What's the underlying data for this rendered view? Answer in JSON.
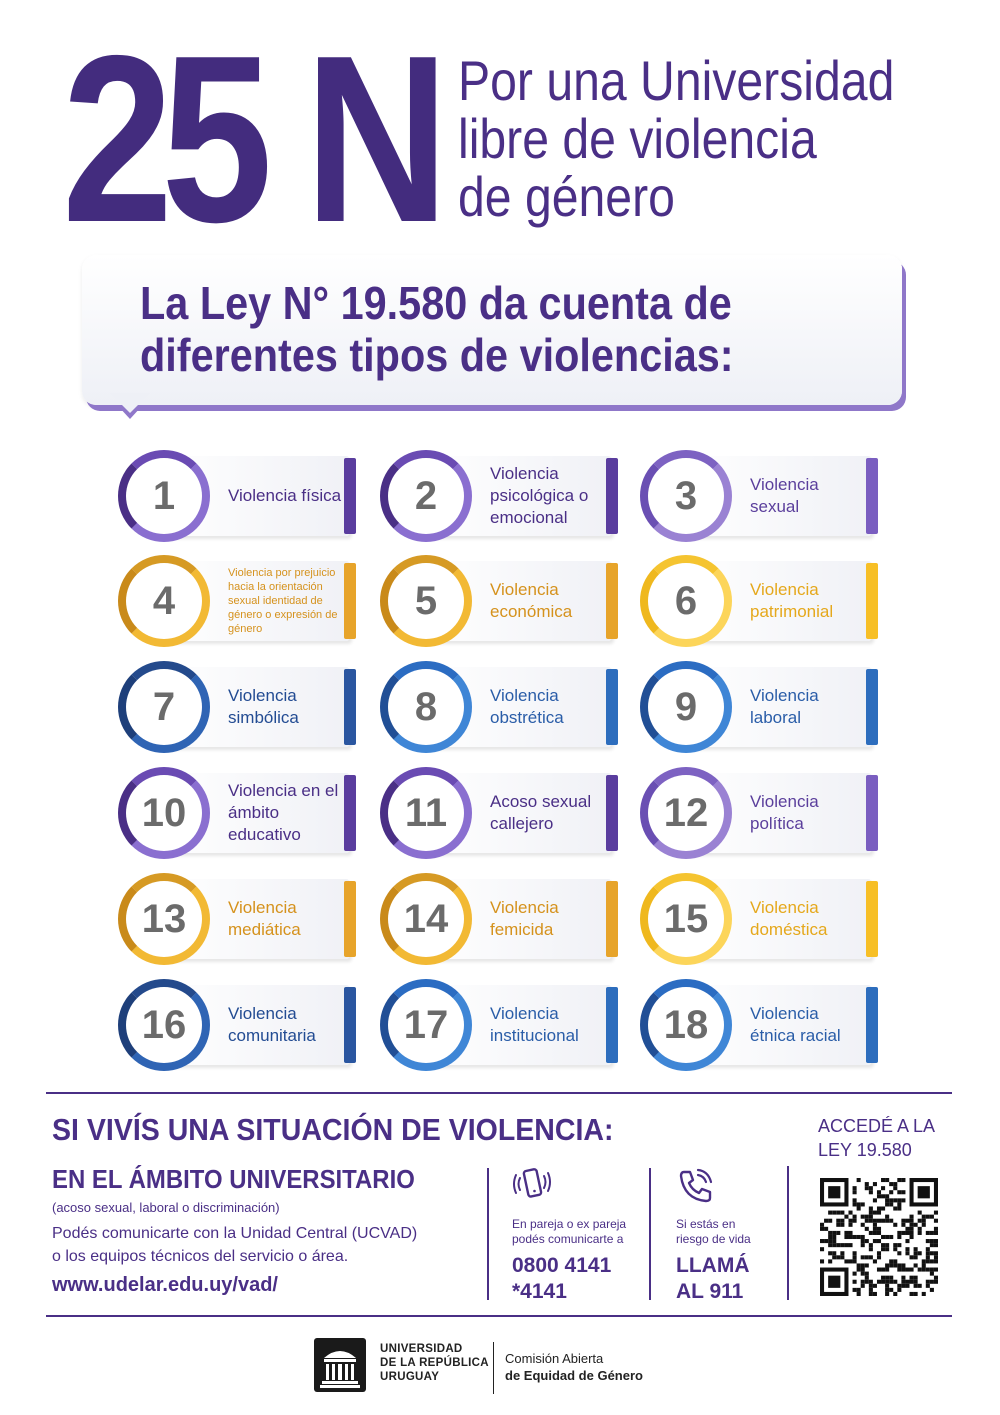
{
  "header": {
    "big_label": "25 N",
    "title_lines": [
      "Por una Universidad",
      "libre de violencia",
      "de género"
    ]
  },
  "bubble": {
    "lines": [
      "La Ley N° 19.580 da cuenta de",
      "diferentes tipos de violencias:"
    ]
  },
  "types": [
    {
      "num": "1",
      "label": "Violencia física",
      "color": "purple"
    },
    {
      "num": "2",
      "label": "Violencia psicológica o emocional",
      "color": "purple"
    },
    {
      "num": "3",
      "label": "Violencia sexual",
      "color": "violet"
    },
    {
      "num": "4",
      "label": "Violencia por prejuicio hacia la orientación sexual identidad de género o expresión de género",
      "color": "orange",
      "small": true
    },
    {
      "num": "5",
      "label": "Violencia económica",
      "color": "orange"
    },
    {
      "num": "6",
      "label": "Violencia patrimonial",
      "color": "yellow"
    },
    {
      "num": "7",
      "label": "Violencia simbólica",
      "color": "dblue"
    },
    {
      "num": "8",
      "label": "Violencia obstrética",
      "color": "blue"
    },
    {
      "num": "9",
      "label": "Violencia laboral",
      "color": "blue"
    },
    {
      "num": "10",
      "label": "Violencia en el ámbito educativo",
      "color": "purple"
    },
    {
      "num": "11",
      "label": "Acoso sexual callejero",
      "color": "purple"
    },
    {
      "num": "12",
      "label": "Violencia política",
      "color": "violet"
    },
    {
      "num": "13",
      "label": "Violencia mediática",
      "color": "orange"
    },
    {
      "num": "14",
      "label": "Violencia femicida",
      "color": "orange"
    },
    {
      "num": "15",
      "label": "Violencia doméstica",
      "color": "yellow"
    },
    {
      "num": "16",
      "label": "Violencia comunitaria",
      "color": "dblue"
    },
    {
      "num": "17",
      "label": "Violencia institucional",
      "color": "blue"
    },
    {
      "num": "18",
      "label": "Violencia étnica racial",
      "color": "blue"
    }
  ],
  "situation": {
    "title": "SI VIVÍS UNA SITUACIÓN DE VIOLENCIA:",
    "university_title": "EN EL ÁMBITO UNIVERSITARIO",
    "university_sub": "(acoso sexual, laboral o discriminación)",
    "university_body_1": "Podés comunicarte con la Unidad Central (UCVAD)",
    "university_body_2": "o los equipos técnicos del servicio o área.",
    "university_link": "www.udelar.edu.uy/vad/",
    "couple_small_1": "En pareja o ex pareja",
    "couple_small_2": "podés comunicarte a",
    "couple_phone_1": "0800 4141",
    "couple_phone_2": "*4141",
    "risk_small_1": "Si estás en",
    "risk_small_2": "riesgo de vida",
    "risk_call_1": "LLAMÁ",
    "risk_call_2": "AL 911",
    "qr_text_1": "ACCEDÉ A LA",
    "qr_text_2": "LEY 19.580"
  },
  "footer": {
    "udelar_1": "UNIVERSIDAD",
    "udelar_2": "DE LA REPÚBLICA",
    "udelar_3": "URUGUAY",
    "ceg_1": "Comisión Abierta",
    "ceg_2": "de Equidad de Género"
  },
  "colors": {
    "primary": "#4a2f86",
    "purple": "#5a3d9e",
    "orange": "#e7a42a",
    "yellow": "#f7bf26",
    "blue": "#2d6dbd"
  },
  "icons": [
    "phone-vibrate-icon",
    "phone-call-icon",
    "qr-code-icon",
    "udelar-building-icon"
  ]
}
